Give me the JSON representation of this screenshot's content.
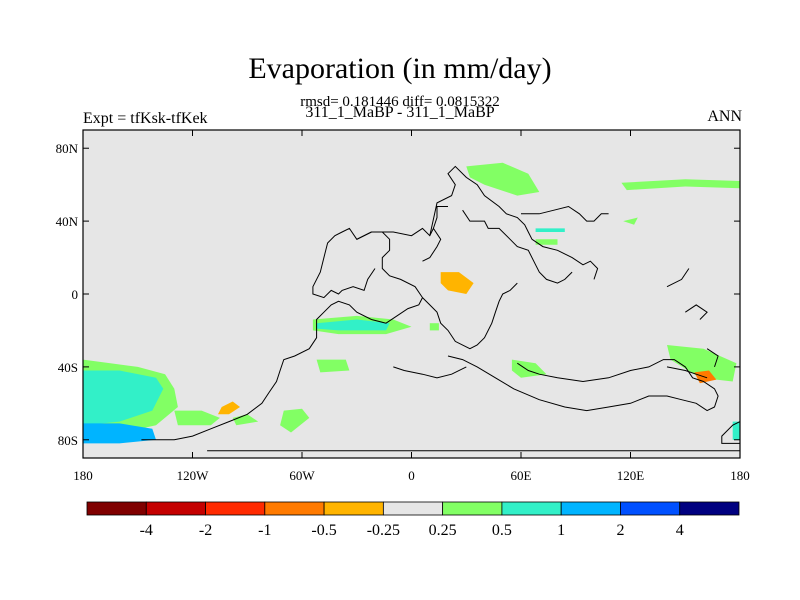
{
  "chart_data": {
    "type": "heatmap",
    "title": "Evaporation (in mm/day)",
    "stats_line": "rmsd= 0.181446 diff= 0.0815322",
    "subtitle": "311_1_MaBP - 311_1_MaBP",
    "left_label": "Expt = tfKsk-tfKek",
    "right_label": "ANN",
    "xlim": [
      -180,
      180
    ],
    "ylim": [
      -90,
      90
    ],
    "x_ticks": [
      {
        "value": -180,
        "label": "180"
      },
      {
        "value": -120,
        "label": "120W"
      },
      {
        "value": -60,
        "label": "60W"
      },
      {
        "value": 0,
        "label": "0"
      },
      {
        "value": 60,
        "label": "60E"
      },
      {
        "value": 120,
        "label": "120E"
      },
      {
        "value": 180,
        "label": "180"
      }
    ],
    "y_ticks": [
      {
        "value": 80,
        "label": "80N"
      },
      {
        "value": 40,
        "label": "40N"
      },
      {
        "value": 0,
        "label": "0"
      },
      {
        "value": -40,
        "label": "40S"
      },
      {
        "value": -80,
        "label": "80S"
      }
    ],
    "colorbar": {
      "colors": [
        "#800000",
        "#c40000",
        "#ff2a00",
        "#ff7a00",
        "#ffb400",
        "#e6e6e6",
        "#82ff64",
        "#32f0c8",
        "#00b4ff",
        "#0050ff",
        "#000080"
      ],
      "labels": [
        "-4",
        "-2",
        "-1",
        "-0.5",
        "-0.25",
        "0.25",
        "0.5",
        "1",
        "2",
        "4"
      ]
    },
    "background_color": "#e6e6e6",
    "anomaly_regions": [
      {
        "level": "0.25",
        "color": "#82ff64",
        "points": [
          [
            -180,
            -36
          ],
          [
            -165,
            -38
          ],
          [
            -150,
            -40
          ],
          [
            -135,
            -44
          ],
          [
            -130,
            -52
          ],
          [
            -128,
            -62
          ],
          [
            -140,
            -72
          ],
          [
            -158,
            -76
          ],
          [
            -180,
            -78
          ]
        ]
      },
      {
        "level": "0.5",
        "color": "#32f0c8",
        "points": [
          [
            -180,
            -42
          ],
          [
            -160,
            -42
          ],
          [
            -140,
            -46
          ],
          [
            -136,
            -52
          ],
          [
            -142,
            -64
          ],
          [
            -160,
            -70
          ],
          [
            -180,
            -72
          ]
        ]
      },
      {
        "level": "1",
        "color": "#00b4ff",
        "points": [
          [
            -180,
            -71
          ],
          [
            -160,
            -71
          ],
          [
            -142,
            -74
          ],
          [
            -140,
            -80
          ],
          [
            -160,
            -82
          ],
          [
            -180,
            -82
          ]
        ]
      },
      {
        "level": "0.25",
        "color": "#82ff64",
        "points": [
          [
            -130,
            -64
          ],
          [
            -115,
            -64
          ],
          [
            -105,
            -68
          ],
          [
            -110,
            -72
          ],
          [
            -128,
            -72
          ]
        ]
      },
      {
        "level": "0.25",
        "color": "#82ff64",
        "points": [
          [
            -98,
            -68
          ],
          [
            -90,
            -66
          ],
          [
            -84,
            -70
          ],
          [
            -96,
            -72
          ]
        ]
      },
      {
        "level": "-0.25",
        "color": "#ffb400",
        "points": [
          [
            -104,
            -62
          ],
          [
            -98,
            -59
          ],
          [
            -94,
            -62
          ],
          [
            -100,
            -66
          ],
          [
            -106,
            -66
          ]
        ]
      },
      {
        "level": "0.25",
        "color": "#82ff64",
        "points": [
          [
            -70,
            -64
          ],
          [
            -60,
            -63
          ],
          [
            -56,
            -68
          ],
          [
            -66,
            -76
          ],
          [
            -72,
            -72
          ]
        ]
      },
      {
        "level": "0.25",
        "color": "#82ff64",
        "points": [
          [
            -52,
            -36
          ],
          [
            -36,
            -36
          ],
          [
            -34,
            -42
          ],
          [
            -50,
            -43
          ]
        ]
      },
      {
        "level": "0.25",
        "color": "#82ff64",
        "points": [
          [
            -54,
            -14
          ],
          [
            -30,
            -12
          ],
          [
            -10,
            -14
          ],
          [
            0,
            -18
          ],
          [
            -14,
            -22
          ],
          [
            -40,
            -22
          ],
          [
            -54,
            -20
          ]
        ]
      },
      {
        "level": "0.5",
        "color": "#32f0c8",
        "points": [
          [
            -52,
            -16
          ],
          [
            -30,
            -14
          ],
          [
            -12,
            -16
          ],
          [
            -14,
            -20
          ],
          [
            -40,
            -20
          ],
          [
            -52,
            -19
          ]
        ]
      },
      {
        "level": "0.25",
        "color": "#82ff64",
        "points": [
          [
            10,
            -16
          ],
          [
            15,
            -16
          ],
          [
            15,
            -20
          ],
          [
            10,
            -20
          ]
        ]
      },
      {
        "level": "0.25",
        "color": "#82ff64",
        "points": [
          [
            30,
            70
          ],
          [
            50,
            72
          ],
          [
            64,
            66
          ],
          [
            70,
            56
          ],
          [
            58,
            54
          ],
          [
            40,
            60
          ],
          [
            32,
            64
          ]
        ]
      },
      {
        "level": "0.25",
        "color": "#82ff64",
        "points": [
          [
            115,
            61
          ],
          [
            150,
            63
          ],
          [
            180,
            62
          ],
          [
            180,
            58
          ],
          [
            150,
            59
          ],
          [
            118,
            57
          ]
        ]
      },
      {
        "level": "0.5",
        "color": "#32f0c8",
        "points": [
          [
            68,
            36
          ],
          [
            84,
            36
          ],
          [
            84,
            34
          ],
          [
            68,
            34
          ]
        ]
      },
      {
        "level": "0.25",
        "color": "#82ff64",
        "points": [
          [
            68,
            30
          ],
          [
            80,
            30
          ],
          [
            80,
            27
          ],
          [
            68,
            27
          ]
        ]
      },
      {
        "level": "0.25",
        "color": "#82ff64",
        "points": [
          [
            116,
            40
          ],
          [
            124,
            42
          ],
          [
            122,
            38
          ]
        ]
      },
      {
        "level": "-0.25",
        "color": "#ffb400",
        "points": [
          [
            16,
            12
          ],
          [
            26,
            12
          ],
          [
            34,
            6
          ],
          [
            30,
            0
          ],
          [
            20,
            2
          ],
          [
            16,
            6
          ]
        ]
      },
      {
        "level": "0.25",
        "color": "#82ff64",
        "points": [
          [
            55,
            -36
          ],
          [
            68,
            -38
          ],
          [
            74,
            -44
          ],
          [
            60,
            -46
          ],
          [
            55,
            -42
          ]
        ]
      },
      {
        "level": "0.25",
        "color": "#82ff64",
        "points": [
          [
            140,
            -28
          ],
          [
            160,
            -30
          ],
          [
            178,
            -38
          ],
          [
            176,
            -48
          ],
          [
            158,
            -46
          ],
          [
            142,
            -36
          ]
        ]
      },
      {
        "level": "-0.5",
        "color": "#ff7a00",
        "points": [
          [
            155,
            -43
          ],
          [
            163,
            -42
          ],
          [
            167,
            -47
          ],
          [
            158,
            -49
          ]
        ]
      },
      {
        "level": "0.5",
        "color": "#32f0c8",
        "points": [
          [
            176,
            -70
          ],
          [
            180,
            -70
          ],
          [
            180,
            -80
          ],
          [
            176,
            -80
          ]
        ]
      }
    ],
    "coastlines": [
      [
        [
          -148,
          -80
        ],
        [
          -130,
          -80
        ],
        [
          -120,
          -78
        ],
        [
          -110,
          -74
        ],
        [
          -100,
          -70
        ],
        [
          -90,
          -66
        ],
        [
          -82,
          -60
        ],
        [
          -78,
          -54
        ],
        [
          -74,
          -48
        ],
        [
          -72,
          -42
        ],
        [
          -70,
          -36
        ],
        [
          -64,
          -34
        ],
        [
          -56,
          -30
        ],
        [
          -52,
          -24
        ],
        [
          -52,
          -14
        ],
        [
          -48,
          -10
        ],
        [
          -44,
          -6
        ],
        [
          -40,
          -4
        ],
        [
          -34,
          -6
        ],
        [
          -30,
          -10
        ],
        [
          -22,
          -14
        ],
        [
          -14,
          -16
        ],
        [
          -8,
          -12
        ],
        [
          -2,
          -8
        ],
        [
          4,
          -6
        ],
        [
          6,
          -2
        ],
        [
          2,
          4
        ],
        [
          -6,
          8
        ],
        [
          -12,
          10
        ],
        [
          -16,
          14
        ],
        [
          -16,
          20
        ],
        [
          -12,
          24
        ],
        [
          -12,
          30
        ],
        [
          -16,
          34
        ],
        [
          -22,
          34
        ],
        [
          -30,
          30
        ],
        [
          -34,
          36
        ],
        [
          -38,
          34
        ],
        [
          -42,
          32
        ],
        [
          -46,
          28
        ],
        [
          -48,
          20
        ],
        [
          -50,
          12
        ],
        [
          -54,
          4
        ],
        [
          -54,
          0
        ],
        [
          -48,
          -2
        ],
        [
          -44,
          2
        ],
        [
          -40,
          0
        ],
        [
          -38,
          2
        ],
        [
          -32,
          4
        ],
        [
          -26,
          2
        ],
        [
          -24,
          8
        ],
        [
          -20,
          14
        ]
      ],
      [
        [
          -30,
          30
        ],
        [
          -22,
          34
        ],
        [
          -10,
          34
        ],
        [
          0,
          32
        ],
        [
          6,
          36
        ],
        [
          10,
          32
        ],
        [
          12,
          36
        ],
        [
          16,
          30
        ],
        [
          14,
          26
        ],
        [
          10,
          20
        ],
        [
          6,
          18
        ]
      ],
      [
        [
          10,
          32
        ],
        [
          14,
          50
        ],
        [
          22,
          54
        ],
        [
          24,
          60
        ],
        [
          20,
          66
        ],
        [
          24,
          70
        ],
        [
          30,
          64
        ],
        [
          36,
          60
        ],
        [
          40,
          54
        ],
        [
          48,
          48
        ],
        [
          52,
          44
        ],
        [
          58,
          42
        ],
        [
          62,
          38
        ],
        [
          64,
          34
        ],
        [
          66,
          30
        ],
        [
          72,
          26
        ],
        [
          80,
          24
        ],
        [
          88,
          20
        ],
        [
          94,
          16
        ],
        [
          98,
          18
        ],
        [
          102,
          14
        ],
        [
          100,
          8
        ]
      ],
      [
        [
          12,
          36
        ],
        [
          14,
          42
        ],
        [
          14,
          48
        ],
        [
          20,
          48
        ]
      ],
      [
        [
          28,
          46
        ],
        [
          32,
          40
        ],
        [
          40,
          40
        ],
        [
          42,
          36
        ],
        [
          48,
          36
        ],
        [
          54,
          30
        ],
        [
          58,
          26
        ],
        [
          64,
          24
        ],
        [
          68,
          16
        ],
        [
          70,
          12
        ],
        [
          74,
          8
        ],
        [
          80,
          6
        ],
        [
          84,
          8
        ],
        [
          88,
          12
        ]
      ],
      [
        [
          60,
          44
        ],
        [
          70,
          44
        ],
        [
          78,
          46
        ],
        [
          86,
          48
        ],
        [
          92,
          44
        ],
        [
          96,
          40
        ],
        [
          100,
          40
        ],
        [
          104,
          44
        ],
        [
          108,
          44
        ]
      ],
      [
        [
          6,
          -2
        ],
        [
          10,
          -6
        ],
        [
          14,
          -10
        ],
        [
          16,
          -16
        ],
        [
          20,
          -20
        ],
        [
          24,
          -26
        ],
        [
          32,
          -30
        ],
        [
          36,
          -28
        ],
        [
          40,
          -24
        ],
        [
          44,
          -16
        ],
        [
          46,
          -10
        ],
        [
          48,
          -4
        ],
        [
          50,
          0
        ],
        [
          54,
          2
        ],
        [
          58,
          6
        ]
      ],
      [
        [
          58,
          -38
        ],
        [
          64,
          -42
        ],
        [
          70,
          -44
        ],
        [
          80,
          -46
        ],
        [
          94,
          -48
        ],
        [
          108,
          -46
        ],
        [
          120,
          -42
        ],
        [
          130,
          -40
        ],
        [
          138,
          -36
        ],
        [
          144,
          -36
        ],
        [
          150,
          -40
        ],
        [
          154,
          -46
        ],
        [
          160,
          -48
        ],
        [
          166,
          -52
        ],
        [
          168,
          -56
        ],
        [
          166,
          -62
        ],
        [
          162,
          -64
        ],
        [
          156,
          -60
        ],
        [
          148,
          -58
        ],
        [
          140,
          -56
        ],
        [
          130,
          -56
        ],
        [
          120,
          -60
        ],
        [
          108,
          -62
        ],
        [
          96,
          -64
        ],
        [
          84,
          -62
        ],
        [
          70,
          -58
        ],
        [
          56,
          -52
        ],
        [
          46,
          -46
        ],
        [
          36,
          -40
        ],
        [
          28,
          -36
        ],
        [
          20,
          -34
        ]
      ],
      [
        [
          -10,
          -40
        ],
        [
          -4,
          -42
        ],
        [
          6,
          -44
        ],
        [
          14,
          -46
        ],
        [
          22,
          -44
        ],
        [
          30,
          -40
        ]
      ],
      [
        [
          140,
          -40
        ],
        [
          150,
          -42
        ],
        [
          156,
          -44
        ],
        [
          162,
          -46
        ]
      ],
      [
        [
          180,
          -70
        ],
        [
          176,
          -72
        ],
        [
          170,
          -78
        ],
        [
          170,
          -82
        ],
        [
          180,
          -82
        ]
      ],
      [
        [
          -112,
          -86
        ],
        [
          -80,
          -86
        ],
        [
          -40,
          -86
        ],
        [
          0,
          -86
        ],
        [
          40,
          -86
        ],
        [
          80,
          -86
        ],
        [
          120,
          -86
        ],
        [
          180,
          -86
        ]
      ],
      [
        [
          150,
          -10
        ],
        [
          156,
          -6
        ],
        [
          162,
          -10
        ],
        [
          158,
          -14
        ]
      ],
      [
        [
          162,
          -30
        ],
        [
          168,
          -34
        ],
        [
          166,
          -40
        ]
      ],
      [
        [
          140,
          4
        ],
        [
          148,
          8
        ],
        [
          152,
          14
        ]
      ]
    ]
  }
}
